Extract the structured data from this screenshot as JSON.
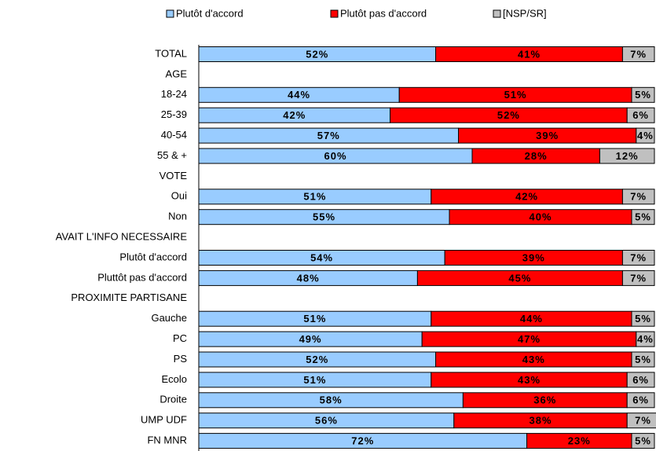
{
  "chart_data": {
    "type": "stacked-bar",
    "categories": [
      "TOTAL",
      "AGE",
      "18-24",
      "25-39",
      "40-54",
      "55 & +",
      "VOTE",
      "Oui",
      "Non",
      "AVAIT L'INFO NECESSAIRE",
      "Plutôt d'accord",
      "Pluttôt pas d'accord",
      "PROXIMITE PARTISANE",
      "Gauche",
      "PC",
      "PS",
      "Ecolo",
      "Droite",
      "UMP UDF",
      "FN MNR"
    ],
    "series": [
      {
        "name": "Plutôt d'accord",
        "color": "#99ccff",
        "values": [
          52,
          null,
          44,
          42,
          57,
          60,
          null,
          51,
          55,
          null,
          54,
          48,
          null,
          51,
          49,
          52,
          51,
          58,
          56,
          72
        ],
        "value_labels": [
          "52%",
          null,
          "44%",
          "42%",
          "57%",
          "60%",
          null,
          "51%",
          "55%",
          null,
          "54%",
          "48%",
          null,
          "51%",
          "49%",
          "52%",
          "51%",
          "58%",
          "56%",
          "72%"
        ]
      },
      {
        "name": "Plutôt pas d'accord",
        "color": "#ff0000",
        "values": [
          41,
          null,
          51,
          52,
          39,
          28,
          null,
          42,
          40,
          null,
          39,
          45,
          null,
          44,
          47,
          43,
          43,
          36,
          38,
          23
        ],
        "value_labels": [
          "41%",
          null,
          "51%",
          "52%",
          "39%",
          "28%",
          null,
          "42%",
          "40%",
          null,
          "39%",
          "45%",
          null,
          "44%",
          "47%",
          "43%",
          "43%",
          "36%",
          "38%",
          "23%"
        ]
      },
      {
        "name": "[NSP/SR]",
        "color": "#c0c0c0",
        "values": [
          7,
          null,
          5,
          6,
          4,
          12,
          null,
          7,
          5,
          null,
          7,
          7,
          null,
          5,
          4,
          5,
          6,
          6,
          7,
          5
        ],
        "value_labels": [
          "7%",
          null,
          "5%",
          "6%",
          "4%",
          "12%",
          null,
          "7%",
          "5%",
          null,
          "7%",
          "7%",
          null,
          "5%",
          "4%",
          "5%",
          "6%",
          "6%",
          "7%",
          "5%"
        ]
      }
    ],
    "xlim": [
      0,
      100
    ],
    "legend": "top"
  }
}
